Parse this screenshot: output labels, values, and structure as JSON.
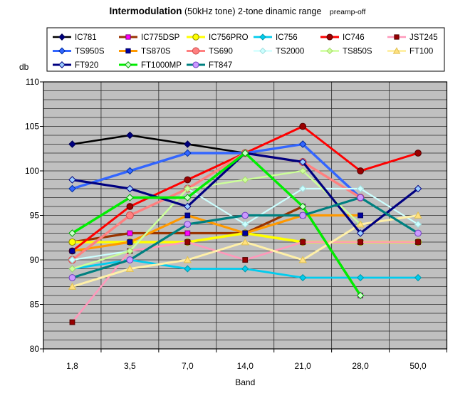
{
  "title": {
    "main": "Intermodulation",
    "middle": " (50kHz tone) 2-tone dinamic range",
    "suffix": "preamp-off"
  },
  "chart_data": {
    "type": "line",
    "title": "Intermodulation (50kHz tone) 2-tone dinamic range preamp-off",
    "xlabel": "Band",
    "ylabel": "db",
    "ylim": [
      80,
      110
    ],
    "y_major_ticks": [
      110,
      105,
      100,
      95,
      90,
      85,
      80
    ],
    "y_minor_step": 1,
    "grid": true,
    "plot_bg": "#c0c0c0",
    "grid_color": "#2a2a2a",
    "legend_position": "top",
    "categories": [
      "1,8",
      "3,5",
      "7,0",
      "14,0",
      "21,0",
      "28,0",
      "50,0"
    ],
    "series": [
      {
        "name": "IC781",
        "values": [
          103,
          104,
          103,
          102,
          103,
          97,
          null
        ],
        "color": "#000000",
        "marker": "diamond",
        "marker_fill": "#000080",
        "marker_stroke": "#000050",
        "width": 2.6,
        "msize": 4.6
      },
      {
        "name": "IC775DSP",
        "values": [
          92,
          93,
          93,
          93,
          96,
          86,
          null
        ],
        "color": "#993300",
        "marker": "square",
        "marker_fill": "#ff00ff",
        "marker_stroke": "#800080",
        "width": 3.2,
        "msize": 3.4
      },
      {
        "name": "IC756PRO",
        "values": [
          92,
          92,
          92,
          93,
          92,
          92,
          92
        ],
        "color": "#ffff00",
        "marker": "circle",
        "marker_fill": "#ffff00",
        "marker_stroke": "#8b8b00",
        "width": 3.6,
        "msize": 4.6
      },
      {
        "name": "IC756",
        "values": [
          89,
          90,
          89,
          89,
          88,
          88,
          88
        ],
        "color": "#00ccee",
        "marker": "diamond",
        "marker_fill": "#00ccee",
        "marker_stroke": "#0099aa",
        "width": 2.8,
        "msize": 4.4
      },
      {
        "name": "IC746",
        "values": [
          91,
          96,
          99,
          102,
          105,
          100,
          102
        ],
        "color": "#ff0000",
        "marker": "circle",
        "marker_fill": "#990000",
        "marker_stroke": "#550000",
        "width": 3.0,
        "msize": 4.4
      },
      {
        "name": "JST245",
        "values": [
          83,
          91,
          92,
          90,
          92,
          92,
          92
        ],
        "color": "#ff99bb",
        "marker": "square",
        "marker_fill": "#990000",
        "marker_stroke": "#550000",
        "width": 2.6,
        "msize": 3.4
      },
      {
        "name": "TS950S",
        "values": [
          98,
          100,
          102,
          102,
          103,
          97,
          null
        ],
        "color": "#3366ff",
        "marker": "diamond",
        "marker_fill": "#3366ff",
        "marker_stroke": "#002fa0",
        "width": 3.4,
        "msize": 4.6
      },
      {
        "name": "TS870S",
        "values": [
          91,
          92,
          95,
          93,
          95,
          95,
          null
        ],
        "color": "#ff9900",
        "marker": "square",
        "marker_fill": "#0000a0",
        "marker_stroke": "#000060",
        "width": 3.2,
        "msize": 3.4
      },
      {
        "name": "TS690",
        "values": [
          90,
          95,
          98,
          102,
          101,
          97,
          null
        ],
        "color": "#ff8080",
        "marker": "circle",
        "marker_fill": "#ff8080",
        "marker_stroke": "#d05050",
        "width": 3.4,
        "msize": 5.0
      },
      {
        "name": "TS2000",
        "values": [
          90,
          91,
          98,
          94,
          98,
          98,
          94
        ],
        "color": "#ccffff",
        "marker": "diamond",
        "marker_fill": "#ccffff",
        "marker_stroke": "#a0dede",
        "width": 2.2,
        "msize": 4.4
      },
      {
        "name": "TS850S",
        "values": [
          89,
          91,
          98,
          99,
          100,
          94,
          null
        ],
        "color": "#ccff99",
        "marker": "diamond",
        "marker_fill": "#ccff99",
        "marker_stroke": "#a8d870",
        "width": 2.4,
        "msize": 4.4
      },
      {
        "name": "FT100",
        "values": [
          87,
          89,
          90,
          92,
          90,
          94,
          95
        ],
        "color": "#fff0a8",
        "marker": "triangle",
        "marker_fill": "#ffe080",
        "marker_stroke": "#e0c050",
        "width": 3.0,
        "msize": 4.6
      },
      {
        "name": "FT920",
        "values": [
          99,
          98,
          96,
          102,
          101,
          93,
          98
        ],
        "color": "#000080",
        "marker": "diamond",
        "marker_fill": "#99ccff",
        "marker_stroke": "#000080",
        "width": 3.2,
        "msize": 4.6
      },
      {
        "name": "FT1000MP",
        "values": [
          93,
          97,
          97,
          102,
          96,
          86,
          null
        ],
        "color": "#00ee00",
        "marker": "diamond",
        "marker_fill": "#ccffcc",
        "marker_stroke": "#00a000",
        "width": 3.4,
        "msize": 4.6
      },
      {
        "name": "FT847",
        "values": [
          88,
          90,
          94,
          95,
          95,
          97,
          93
        ],
        "color": "#008080",
        "marker": "circle",
        "marker_fill": "#cc99ff",
        "marker_stroke": "#7040c0",
        "width": 3.2,
        "msize": 4.4
      }
    ]
  }
}
